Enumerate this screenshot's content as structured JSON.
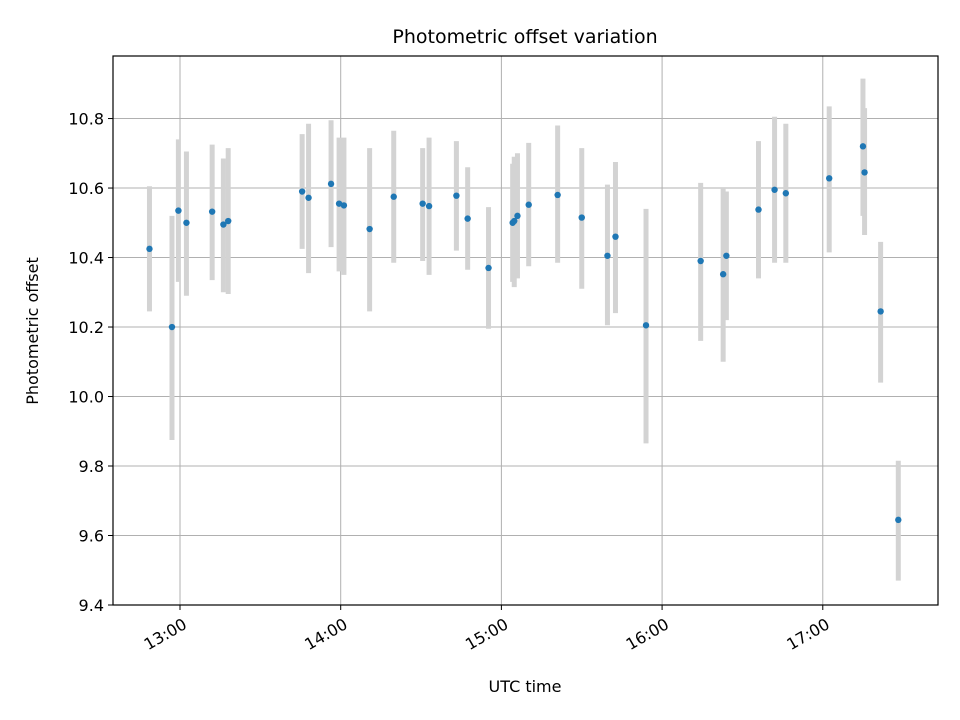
{
  "chart_data": {
    "type": "scatter",
    "title": "Photometric offset variation",
    "xlabel": "UTC time",
    "ylabel": "Photometric offset",
    "xlim": [
      12.583,
      17.717
    ],
    "ylim": [
      9.4,
      10.98
    ],
    "grid": true,
    "xticks": [
      13,
      14,
      15,
      16,
      17
    ],
    "xtick_labels": [
      "13:00",
      "14:00",
      "15:00",
      "16:00",
      "17:00"
    ],
    "yticks": [
      9.4,
      9.6,
      9.8,
      10.0,
      10.2,
      10.4,
      10.6,
      10.8
    ],
    "ytick_labels": [
      "9.4",
      "9.6",
      "9.8",
      "10.0",
      "10.2",
      "10.4",
      "10.6",
      "10.8"
    ],
    "point_color": "#1f77b4",
    "errorbar_color": "#d3d3d3",
    "series": [
      {
        "name": "offset",
        "x": [
          12.81,
          12.95,
          12.99,
          13.04,
          13.2,
          13.27,
          13.3,
          13.76,
          13.8,
          13.94,
          13.99,
          14.02,
          14.18,
          14.33,
          14.51,
          14.55,
          14.72,
          14.79,
          14.92,
          15.07,
          15.08,
          15.1,
          15.17,
          15.35,
          15.5,
          15.66,
          15.71,
          15.9,
          16.24,
          16.38,
          16.4,
          16.6,
          16.7,
          16.77,
          17.04,
          17.25,
          17.26,
          17.36,
          17.47
        ],
        "y": [
          10.425,
          10.2,
          10.535,
          10.5,
          10.532,
          10.495,
          10.505,
          10.59,
          10.572,
          10.612,
          10.555,
          10.55,
          10.482,
          10.575,
          10.555,
          10.548,
          10.578,
          10.512,
          10.37,
          10.5,
          10.505,
          10.52,
          10.552,
          10.58,
          10.515,
          10.405,
          10.46,
          10.205,
          10.39,
          10.352,
          10.405,
          10.538,
          10.595,
          10.585,
          10.628,
          10.72,
          10.645,
          10.245,
          9.645
        ],
        "err_low": [
          10.245,
          9.875,
          10.33,
          10.29,
          10.335,
          10.3,
          10.295,
          10.425,
          10.355,
          10.43,
          10.36,
          10.35,
          10.245,
          10.385,
          10.39,
          10.35,
          10.42,
          10.365,
          10.195,
          10.33,
          10.315,
          10.34,
          10.375,
          10.385,
          10.31,
          10.205,
          10.24,
          9.865,
          10.16,
          10.1,
          10.22,
          10.34,
          10.385,
          10.385,
          10.415,
          10.52,
          10.465,
          10.04,
          9.47
        ],
        "err_high": [
          10.605,
          10.52,
          10.74,
          10.705,
          10.725,
          10.685,
          10.715,
          10.755,
          10.785,
          10.795,
          10.745,
          10.745,
          10.715,
          10.765,
          10.715,
          10.745,
          10.735,
          10.66,
          10.545,
          10.67,
          10.69,
          10.7,
          10.73,
          10.78,
          10.715,
          10.61,
          10.675,
          10.54,
          10.615,
          10.6,
          10.59,
          10.735,
          10.805,
          10.785,
          10.835,
          10.915,
          10.83,
          10.445,
          9.815
        ]
      }
    ]
  }
}
